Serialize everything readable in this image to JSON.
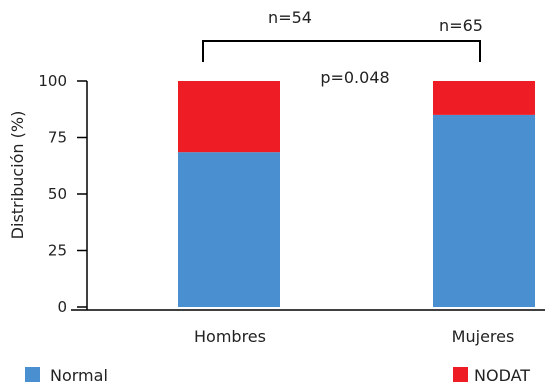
{
  "chart_data": {
    "type": "bar",
    "stacked": true,
    "categories": [
      "Hombres",
      "Mujeres"
    ],
    "series": [
      {
        "name": "Normal",
        "color": "#4a90d0",
        "values": [
          68.5,
          85
        ]
      },
      {
        "name": "NODAT",
        "color": "#ee1c25",
        "values": [
          31.5,
          15
        ]
      }
    ],
    "ylabel": "Distribución (%)",
    "xlabel": "",
    "ylim": [
      0,
      100
    ],
    "yticks": [
      0,
      25,
      50,
      75,
      100
    ],
    "annotations": {
      "n_hombres": "n=54",
      "n_mujeres": "n=65",
      "p_value": "p=0.048"
    },
    "legend": {
      "placement": "bottom"
    },
    "grid": false
  }
}
